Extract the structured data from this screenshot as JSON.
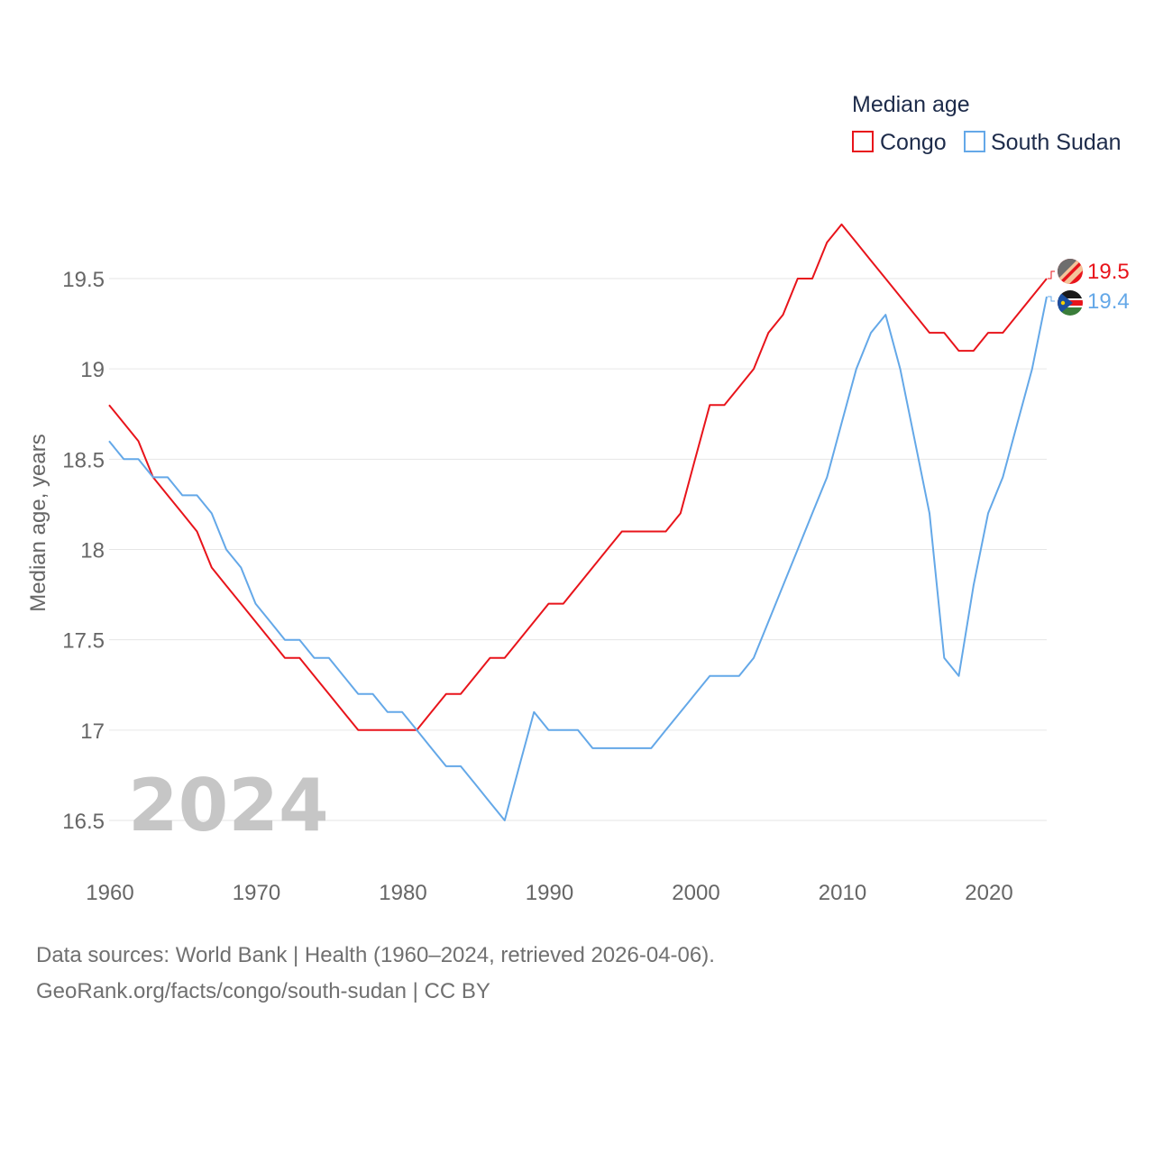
{
  "chart_data": {
    "type": "line",
    "legend_title": "Median age",
    "ylabel": "Median age, years",
    "xlabel": "",
    "ylim": [
      16.25,
      19.9
    ],
    "xlim": [
      1960,
      2024
    ],
    "yticks": [
      16.5,
      17,
      17.5,
      18,
      18.5,
      19,
      19.5
    ],
    "ytick_labels": [
      "16.5",
      "17",
      "17.5",
      "18",
      "18.5",
      "19",
      "19.5"
    ],
    "xticks": [
      1960,
      1970,
      1980,
      1990,
      2000,
      2010,
      2020
    ],
    "xtick_labels": [
      "1960",
      "1970",
      "1980",
      "1990",
      "2000",
      "2010",
      "2020"
    ],
    "year_overlay": "2024",
    "x": [
      1960,
      1961,
      1962,
      1963,
      1964,
      1965,
      1966,
      1967,
      1968,
      1969,
      1970,
      1971,
      1972,
      1973,
      1974,
      1975,
      1976,
      1977,
      1978,
      1979,
      1980,
      1981,
      1982,
      1983,
      1984,
      1985,
      1986,
      1987,
      1988,
      1989,
      1990,
      1991,
      1992,
      1993,
      1994,
      1995,
      1996,
      1997,
      1998,
      1999,
      2000,
      2001,
      2002,
      2003,
      2004,
      2005,
      2006,
      2007,
      2008,
      2009,
      2010,
      2011,
      2012,
      2013,
      2014,
      2015,
      2016,
      2017,
      2018,
      2019,
      2020,
      2021,
      2022,
      2023,
      2024
    ],
    "series": [
      {
        "name": "Congo",
        "color": "#e8141b",
        "end_label": "19.5",
        "values": [
          18.8,
          18.7,
          18.6,
          18.4,
          18.3,
          18.2,
          18.1,
          17.9,
          17.8,
          17.7,
          17.6,
          17.5,
          17.4,
          17.4,
          17.3,
          17.2,
          17.1,
          17.0,
          17.0,
          17.0,
          17.0,
          17.0,
          17.1,
          17.2,
          17.2,
          17.3,
          17.4,
          17.4,
          17.5,
          17.6,
          17.7,
          17.7,
          17.8,
          17.9,
          18.0,
          18.1,
          18.1,
          18.1,
          18.1,
          18.2,
          18.5,
          18.8,
          18.8,
          18.9,
          19.0,
          19.2,
          19.3,
          19.5,
          19.5,
          19.7,
          19.8,
          19.7,
          19.6,
          19.5,
          19.4,
          19.3,
          19.2,
          19.2,
          19.1,
          19.1,
          19.2,
          19.2,
          19.3,
          19.4,
          19.5
        ]
      },
      {
        "name": "South Sudan",
        "color": "#64a8e8",
        "end_label": "19.4",
        "values": [
          18.6,
          18.5,
          18.5,
          18.4,
          18.4,
          18.3,
          18.3,
          18.2,
          18.0,
          17.9,
          17.7,
          17.6,
          17.5,
          17.5,
          17.4,
          17.4,
          17.3,
          17.2,
          17.2,
          17.1,
          17.1,
          17.0,
          16.9,
          16.8,
          16.8,
          16.7,
          16.6,
          16.5,
          16.8,
          17.1,
          17.0,
          17.0,
          17.0,
          16.9,
          16.9,
          16.9,
          16.9,
          16.9,
          17.0,
          17.1,
          17.2,
          17.3,
          17.3,
          17.3,
          17.4,
          17.6,
          17.8,
          18.0,
          18.2,
          18.4,
          18.7,
          19.0,
          19.2,
          19.3,
          19.0,
          18.6,
          18.2,
          17.4,
          17.3,
          17.8,
          18.2,
          18.4,
          18.7,
          19.0,
          19.4
        ]
      }
    ]
  },
  "footer": {
    "line1": "Data sources: World Bank | Health (1960–2024, retrieved 2026-04-06).",
    "line2": "GeoRank.org/facts/congo/south-sudan | CC BY"
  },
  "icons": {
    "congo_flag": "congo-flag-icon",
    "south_sudan_flag": "south-sudan-flag-icon"
  }
}
